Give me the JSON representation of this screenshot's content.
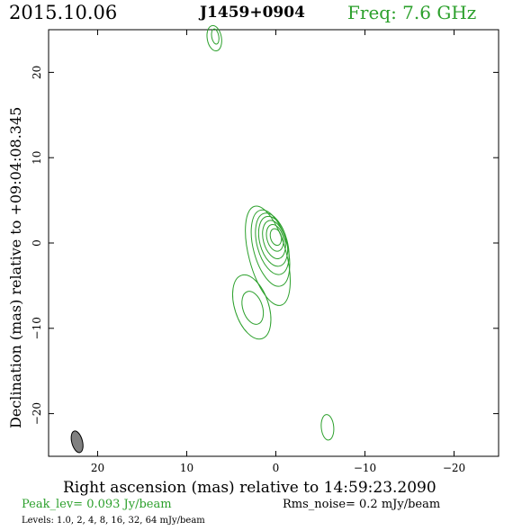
{
  "header": {
    "date": "2015.10.06",
    "source": "J1459+0904",
    "frequency": "Freq: 7.6 GHz"
  },
  "footer": {
    "peak": "Peak_lev=  0.093 Jy/beam",
    "rms": "Rms_noise=  0.2 mJy/beam",
    "levels": "Levels: 1.0,   2,   4,   8,  16,  32,  64 mJy/beam"
  },
  "colors": {
    "contour": "#2ca02c",
    "beam_fill": "#808080",
    "axes": "#000000"
  },
  "chart_data": {
    "type": "contour",
    "xlabel": "Right ascension (mas) relative to 14:59:23.2090",
    "ylabel": "Declination (mas) relative to +09:04:08.345",
    "xlim": [
      25.5,
      -25
    ],
    "ylim": [
      -25,
      25
    ],
    "x_ticks": [
      20,
      10,
      0,
      -10,
      -20
    ],
    "x_tick_labels": [
      "20",
      "10",
      "0",
      "−10",
      "−20"
    ],
    "y_ticks": [
      20,
      10,
      0,
      -10,
      -20
    ],
    "y_tick_labels": [
      "20",
      "10",
      "0",
      "−10",
      "−20"
    ],
    "contour_levels_mJy": [
      1.0,
      2,
      4,
      8,
      16,
      32,
      64
    ],
    "peak_Jy_per_beam": 0.093,
    "rms_noise_mJy_per_beam": 0.2,
    "contours": [
      {
        "x": 0.0,
        "y": 0.7,
        "rx": 0.6,
        "ry": 1.0,
        "angle": -15
      },
      {
        "x": 0.1,
        "y": 0.6,
        "rx": 0.9,
        "ry": 1.6,
        "angle": -15
      },
      {
        "x": 0.2,
        "y": 0.4,
        "rx": 1.2,
        "ry": 2.3,
        "angle": -15
      },
      {
        "x": 0.3,
        "y": 0.2,
        "rx": 1.5,
        "ry": 3.0,
        "angle": -15
      },
      {
        "x": 0.4,
        "y": -0.1,
        "rx": 1.7,
        "ry": 3.7,
        "angle": -15
      },
      {
        "x": 0.6,
        "y": -0.6,
        "rx": 1.9,
        "ry": 4.6,
        "angle": -15
      },
      {
        "x": 0.9,
        "y": -1.5,
        "rx": 2.1,
        "ry": 6.0,
        "angle": -15
      },
      {
        "x": 2.6,
        "y": -7.6,
        "rx": 1.1,
        "ry": 2.0,
        "angle": -18
      },
      {
        "x": 2.7,
        "y": -7.5,
        "rx": 1.9,
        "ry": 3.9,
        "angle": -18
      },
      {
        "x": 6.8,
        "y": 24.2,
        "rx": 0.4,
        "ry": 0.9,
        "angle": -10
      },
      {
        "x": 6.9,
        "y": 24.0,
        "rx": 0.8,
        "ry": 1.5,
        "angle": -10
      },
      {
        "x": -5.8,
        "y": -21.6,
        "rx": 0.7,
        "ry": 1.5,
        "angle": -5
      }
    ],
    "beam": {
      "x": 22.3,
      "y": -23.3,
      "major": 2.6,
      "minor": 1.2,
      "angle": -15
    }
  }
}
